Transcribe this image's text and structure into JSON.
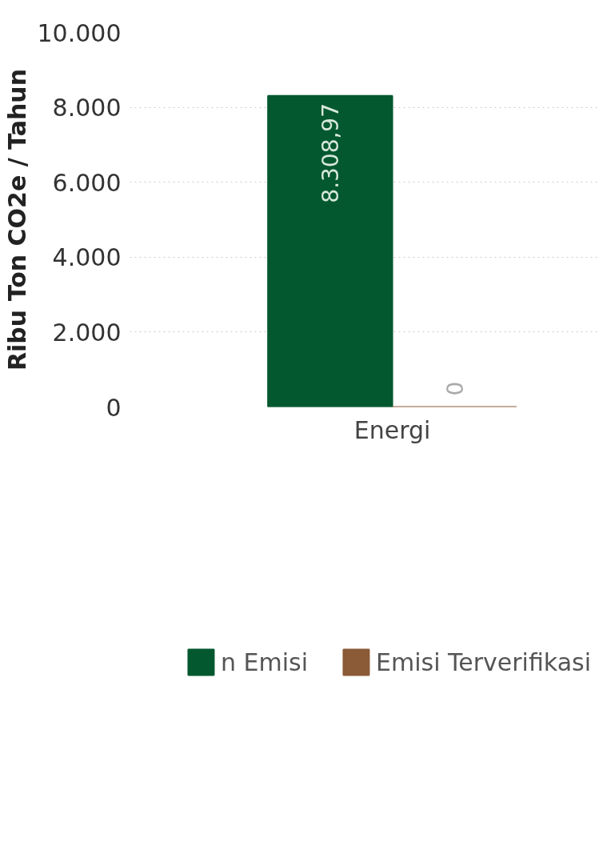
{
  "chart_data": {
    "type": "bar",
    "ylabel": "Ribu Ton CO2e / Tahun",
    "categories": [
      "Energi"
    ],
    "series": [
      {
        "name": "n Emisi",
        "color": "#03582f",
        "values": [
          8308.97
        ],
        "value_labels": [
          "8.308,97"
        ]
      },
      {
        "name": "Emisi Terverifikasi",
        "color": "#8b5a36",
        "values": [
          0
        ],
        "value_labels": [
          "0"
        ]
      }
    ],
    "ylim": [
      0,
      10000
    ],
    "yticks": [
      {
        "value": 0,
        "label": "0"
      },
      {
        "value": 2000,
        "label": "2.000"
      },
      {
        "value": 4000,
        "label": "4.000"
      },
      {
        "value": 6000,
        "label": "6.000"
      },
      {
        "value": 8000,
        "label": "8.000"
      },
      {
        "value": 10000,
        "label": "10.000"
      }
    ],
    "grid": "y",
    "legend": "bottom"
  }
}
